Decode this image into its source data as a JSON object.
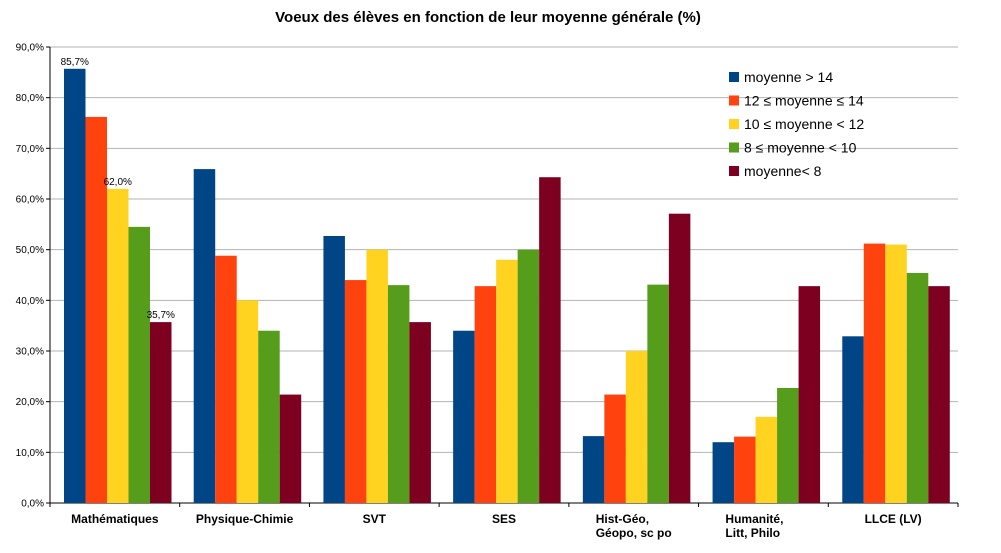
{
  "chart_data": {
    "type": "bar",
    "title": "Voeux des élèves en fonction de leur moyenne générale (%)",
    "xlabel": "",
    "ylabel": "",
    "ylim": [
      0,
      90
    ],
    "y_ticks": [
      "0,0%",
      "10,0%",
      "20,0%",
      "30,0%",
      "40,0%",
      "50,0%",
      "60,0%",
      "70,0%",
      "80,0%",
      "90,0%"
    ],
    "grid": true,
    "legend_position": "top-right",
    "categories": [
      [
        "Mathématiques"
      ],
      [
        "Physique-Chimie"
      ],
      [
        "SVT"
      ],
      [
        "SES"
      ],
      [
        "Hist-Géo,",
        "Géopo, sc po"
      ],
      [
        "Humanité,",
        "Litt, Philo"
      ],
      [
        "LLCE (LV)"
      ]
    ],
    "series": [
      {
        "name": "moyenne > 14",
        "color": "#004586",
        "values": [
          85.7,
          65.9,
          52.7,
          34.0,
          13.2,
          12.0,
          32.9
        ]
      },
      {
        "name": "12 ≤ moyenne ≤ 14",
        "color": "#ff420e",
        "values": [
          76.2,
          48.8,
          44.0,
          42.8,
          21.4,
          13.1,
          51.2
        ]
      },
      {
        "name": "10 ≤ moyenne < 12",
        "color": "#ffd320",
        "values": [
          62.0,
          40.0,
          50.0,
          48.0,
          30.0,
          17.0,
          51.0
        ]
      },
      {
        "name": "8 ≤ moyenne < 10",
        "color": "#579d1c",
        "values": [
          54.5,
          34.0,
          43.0,
          50.0,
          43.1,
          22.7,
          45.4
        ]
      },
      {
        "name": "moyenne< 8",
        "color": "#7e0021",
        "values": [
          35.7,
          21.4,
          35.7,
          64.3,
          57.1,
          42.8,
          42.8
        ]
      }
    ],
    "data_labels": [
      {
        "series": 0,
        "category": 0,
        "text": "85,7%"
      },
      {
        "series": 2,
        "category": 0,
        "text": "62,0%"
      },
      {
        "series": 4,
        "category": 0,
        "text": "35,7%"
      }
    ]
  }
}
